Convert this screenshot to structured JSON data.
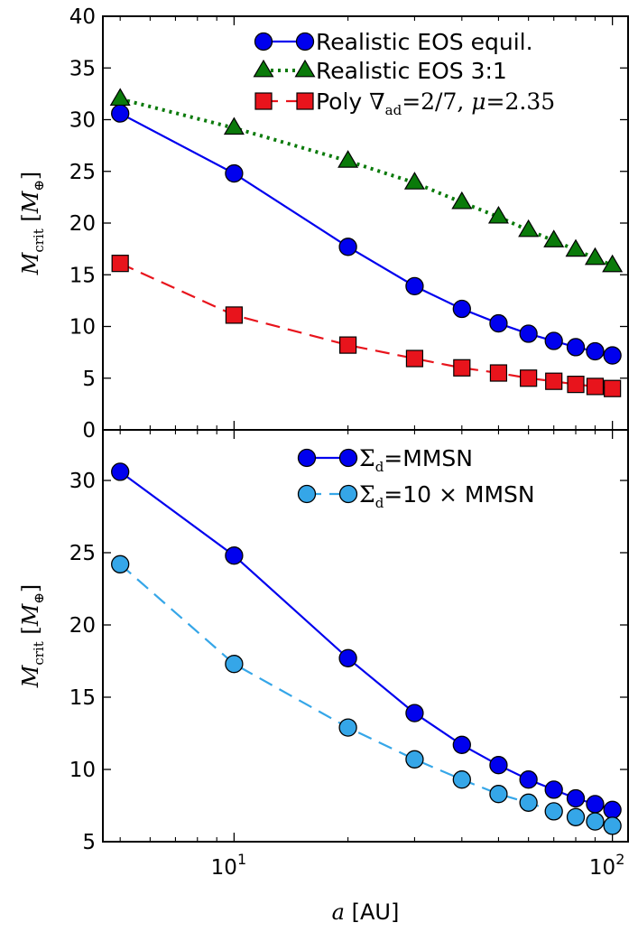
{
  "colors": {
    "realistic_equil": "#0000ee",
    "realistic_31": "#0a7a0a",
    "poly": "#e8141c",
    "mmsn": "#0000ee",
    "mmsn10": "#35a6e8"
  },
  "chart_data": [
    {
      "type": "line",
      "x_scale": "log",
      "xlim": [
        4.5,
        110
      ],
      "ylim": [
        0,
        40
      ],
      "ylabel_parts": {
        "sym": "M",
        "sub": "crit",
        "unit": "M",
        "unit_sub": "⊕"
      },
      "y_ticks": [
        "0",
        "5",
        "10",
        "15",
        "20",
        "25",
        "30",
        "35",
        "40"
      ],
      "legend_position": "top-right",
      "series": [
        {
          "name": "Realistic EOS equil.",
          "style": "solid-circle",
          "x": [
            5,
            10,
            20,
            30,
            40,
            50,
            60,
            70,
            80,
            90,
            100
          ],
          "y": [
            30.6,
            24.8,
            17.7,
            13.9,
            11.7,
            10.3,
            9.3,
            8.6,
            8.0,
            7.6,
            7.2
          ]
        },
        {
          "name": "Realistic EOS 3:1",
          "style": "dotted-triangle",
          "x": [
            5,
            10,
            20,
            30,
            40,
            50,
            60,
            70,
            80,
            90,
            100
          ],
          "y": [
            32.0,
            29.2,
            26.0,
            23.9,
            22.0,
            20.6,
            19.3,
            18.3,
            17.4,
            16.6,
            15.9
          ]
        },
        {
          "name": "Poly ∇ad=2/7, μ=2.35",
          "name_parts": {
            "prefix": "Poly ",
            "nabla": "∇",
            "sub": "ad",
            "mid": "=2/7, ",
            "mu": "μ",
            "rest": "=2.35"
          },
          "style": "dashed-square",
          "x": [
            5,
            10,
            20,
            30,
            40,
            50,
            60,
            70,
            80,
            90,
            100
          ],
          "y": [
            16.1,
            11.1,
            8.2,
            6.9,
            6.0,
            5.5,
            5.0,
            4.7,
            4.4,
            4.2,
            4.0
          ]
        }
      ]
    },
    {
      "type": "line",
      "x_scale": "log",
      "xlim": [
        4.5,
        110
      ],
      "ylim": [
        5,
        33.5
      ],
      "xlabel_parts": {
        "sym": "a",
        "unit": "[AU]"
      },
      "ylabel_parts": {
        "sym": "M",
        "sub": "crit",
        "unit": "M",
        "unit_sub": "⊕"
      },
      "y_ticks": [
        "5",
        "10",
        "15",
        "20",
        "25",
        "30"
      ],
      "x_ticks": [
        {
          "base": "10",
          "exp": "1"
        },
        {
          "base": "10",
          "exp": "2"
        }
      ],
      "legend_position": "top-right",
      "series": [
        {
          "name": "Σd=MMSN",
          "name_parts": {
            "sigma": "Σ",
            "sub": "d",
            "rest": "=MMSN"
          },
          "style": "solid-circle",
          "x": [
            5,
            10,
            20,
            30,
            40,
            50,
            60,
            70,
            80,
            90,
            100
          ],
          "y": [
            30.6,
            24.8,
            17.7,
            13.9,
            11.7,
            10.3,
            9.3,
            8.6,
            8.0,
            7.6,
            7.2
          ]
        },
        {
          "name": "Σd=10×MMSN",
          "name_parts": {
            "sigma": "Σ",
            "sub": "d",
            "rest": "=10 × MMSN"
          },
          "style": "dashed-circle",
          "x": [
            5,
            10,
            20,
            30,
            40,
            50,
            60,
            70,
            80,
            90,
            100
          ],
          "y": [
            24.2,
            17.3,
            12.9,
            10.7,
            9.3,
            8.3,
            7.7,
            7.1,
            6.7,
            6.4,
            6.1
          ]
        }
      ]
    }
  ]
}
